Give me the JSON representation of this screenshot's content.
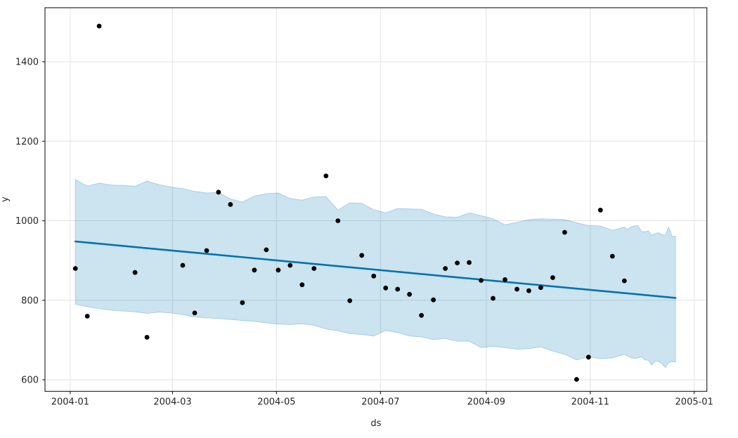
{
  "chart_data": {
    "type": "scatter",
    "subtype": "forecast-with-uncertainty-band",
    "title": "",
    "xlabel": "ds",
    "ylabel": "y",
    "grid": true,
    "legend": "none",
    "x_epoch": "2004-01-01",
    "xlim_days": [
      -14.8,
      373.4
    ],
    "ylim": [
      571,
      1536
    ],
    "x_ticks": [
      {
        "date": "2004-01-01",
        "label": "2004-01"
      },
      {
        "date": "2004-03-01",
        "label": "2004-03"
      },
      {
        "date": "2004-05-01",
        "label": "2004-05"
      },
      {
        "date": "2004-07-01",
        "label": "2004-07"
      },
      {
        "date": "2004-09-01",
        "label": "2004-09"
      },
      {
        "date": "2004-11-01",
        "label": "2004-11"
      },
      {
        "date": "2005-01-01",
        "label": "2005-01"
      }
    ],
    "y_ticks": [
      600,
      800,
      1000,
      1200,
      1400
    ],
    "points_format": [
      "ds",
      "y"
    ],
    "points": [
      [
        "2004-01-04",
        880
      ],
      [
        "2004-01-11",
        760
      ],
      [
        "2004-01-18",
        1490
      ],
      [
        "2004-02-08",
        870
      ],
      [
        "2004-02-15",
        707
      ],
      [
        "2004-03-07",
        888
      ],
      [
        "2004-03-14",
        768
      ],
      [
        "2004-03-21",
        925
      ],
      [
        "2004-03-28",
        1072
      ],
      [
        "2004-04-04",
        1041
      ],
      [
        "2004-04-11",
        794
      ],
      [
        "2004-04-18",
        876
      ],
      [
        "2004-04-25",
        927
      ],
      [
        "2004-05-02",
        876
      ],
      [
        "2004-05-09",
        888
      ],
      [
        "2004-05-16",
        839
      ],
      [
        "2004-05-23",
        880
      ],
      [
        "2004-05-30",
        1113
      ],
      [
        "2004-06-06",
        1000
      ],
      [
        "2004-06-13",
        799
      ],
      [
        "2004-06-20",
        913
      ],
      [
        "2004-06-27",
        861
      ],
      [
        "2004-07-04",
        831
      ],
      [
        "2004-07-11",
        828
      ],
      [
        "2004-07-18",
        815
      ],
      [
        "2004-07-25",
        762
      ],
      [
        "2004-08-01",
        801
      ],
      [
        "2004-08-08",
        880
      ],
      [
        "2004-08-15",
        894
      ],
      [
        "2004-08-22",
        895
      ],
      [
        "2004-08-29",
        850
      ],
      [
        "2004-09-05",
        805
      ],
      [
        "2004-09-12",
        852
      ],
      [
        "2004-09-19",
        828
      ],
      [
        "2004-09-26",
        824
      ],
      [
        "2004-10-03",
        832
      ],
      [
        "2004-10-10",
        857
      ],
      [
        "2004-10-17",
        971
      ],
      [
        "2004-10-24",
        601
      ],
      [
        "2004-10-31",
        657
      ],
      [
        "2004-11-07",
        1027
      ],
      [
        "2004-11-14",
        911
      ],
      [
        "2004-11-21",
        849
      ]
    ],
    "trend_line": [
      {
        "ds": "2004-01-04",
        "y": 948
      },
      {
        "ds": "2004-12-21",
        "y": 806
      }
    ],
    "band_format": [
      "ds",
      "lower",
      "upper"
    ],
    "uncertainty_band": [
      [
        "2004-01-04",
        790,
        1104
      ],
      [
        "2004-01-11",
        784,
        1087
      ],
      [
        "2004-01-18",
        779,
        1095
      ],
      [
        "2004-01-25",
        775,
        1090
      ],
      [
        "2004-02-01",
        773,
        1089
      ],
      [
        "2004-02-08",
        771,
        1087
      ],
      [
        "2004-02-15",
        767,
        1100
      ],
      [
        "2004-02-22",
        770,
        1091
      ],
      [
        "2004-02-29",
        768,
        1085
      ],
      [
        "2004-03-07",
        764,
        1081
      ],
      [
        "2004-03-14",
        758,
        1074
      ],
      [
        "2004-03-21",
        756,
        1070
      ],
      [
        "2004-03-28",
        754,
        1071
      ],
      [
        "2004-04-04",
        752,
        1055
      ],
      [
        "2004-04-11",
        749,
        1047
      ],
      [
        "2004-04-18",
        747,
        1062
      ],
      [
        "2004-04-25",
        743,
        1068
      ],
      [
        "2004-05-02",
        740,
        1070
      ],
      [
        "2004-05-09",
        739,
        1056
      ],
      [
        "2004-05-16",
        741,
        1052
      ],
      [
        "2004-05-23",
        737,
        1060
      ],
      [
        "2004-05-30",
        728,
        1061
      ],
      [
        "2004-06-06",
        723,
        1027
      ],
      [
        "2004-06-13",
        716,
        1045
      ],
      [
        "2004-06-20",
        714,
        1044
      ],
      [
        "2004-06-27",
        710,
        1028
      ],
      [
        "2004-07-04",
        724,
        1020
      ],
      [
        "2004-07-11",
        719,
        1031
      ],
      [
        "2004-07-18",
        710,
        1030
      ],
      [
        "2004-07-25",
        708,
        1029
      ],
      [
        "2004-08-01",
        701,
        1017
      ],
      [
        "2004-08-08",
        704,
        1010
      ],
      [
        "2004-08-15",
        697,
        1009
      ],
      [
        "2004-08-22",
        697,
        1020
      ],
      [
        "2004-08-29",
        681,
        1013
      ],
      [
        "2004-09-05",
        684,
        1005
      ],
      [
        "2004-09-12",
        681,
        990
      ],
      [
        "2004-09-19",
        677,
        996
      ],
      [
        "2004-09-26",
        678,
        1003
      ],
      [
        "2004-10-03",
        683,
        1005
      ],
      [
        "2004-10-10",
        672,
        1004
      ],
      [
        "2004-10-17",
        664,
        1003
      ],
      [
        "2004-10-24",
        650,
        995
      ],
      [
        "2004-10-31",
        658,
        988
      ],
      [
        "2004-11-07",
        653,
        987
      ],
      [
        "2004-11-14",
        655,
        976
      ],
      [
        "2004-11-21",
        664,
        984
      ],
      [
        "2004-11-23",
        660,
        978
      ],
      [
        "2004-11-25",
        655,
        985
      ],
      [
        "2004-11-27",
        654,
        987
      ],
      [
        "2004-11-29",
        655,
        988
      ],
      [
        "2004-12-01",
        658,
        973
      ],
      [
        "2004-12-03",
        650,
        972
      ],
      [
        "2004-12-05",
        649,
        975
      ],
      [
        "2004-12-07",
        637,
        964
      ],
      [
        "2004-12-09",
        646,
        968
      ],
      [
        "2004-12-11",
        646,
        970
      ],
      [
        "2004-12-13",
        640,
        965
      ],
      [
        "2004-12-15",
        631,
        964
      ],
      [
        "2004-12-17",
        643,
        984
      ],
      [
        "2004-12-19",
        646,
        961
      ],
      [
        "2004-12-21",
        645,
        961
      ]
    ],
    "colors": {
      "trend": "#0072B2",
      "band_fill": "rgba(0,114,178,0.2)",
      "band_edge": "rgba(0,114,178,0.25)",
      "points": "#000000",
      "grid": "#e2e2e2",
      "spine": "#2b2b2b",
      "text": "#262626"
    }
  }
}
